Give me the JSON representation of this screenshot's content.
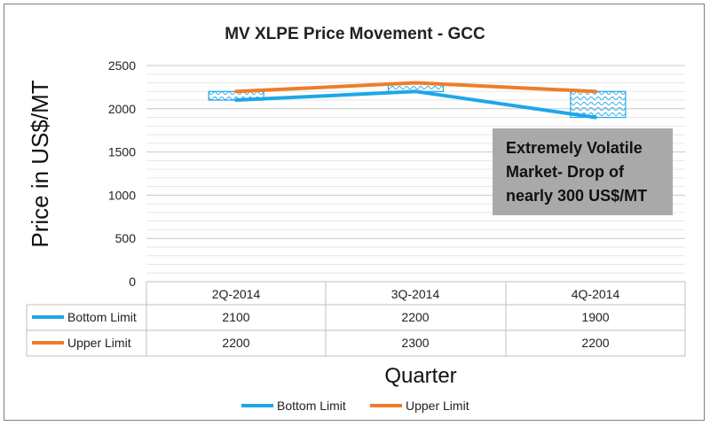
{
  "chart_data": {
    "type": "line",
    "title": "MV XLPE Price Movement - GCC",
    "xlabel": "Quarter",
    "ylabel": "Price in US$/MT",
    "categories": [
      "2Q-2014",
      "3Q-2014",
      "4Q-2014"
    ],
    "yticks": [
      "0",
      "500",
      "1000",
      "1500",
      "2000",
      "2500"
    ],
    "ylim": [
      0,
      2500
    ],
    "grid": true,
    "legend": "bottom",
    "series": [
      {
        "name": "Bottom Limit",
        "values": [
          2100,
          2200,
          1900
        ],
        "color": "#1ea7e8"
      },
      {
        "name": "Upper Limit",
        "values": [
          2200,
          2300,
          2200
        ],
        "color": "#ee7d2b"
      }
    ],
    "annotation_lines": [
      "Extremely Volatile",
      "Market- Drop of",
      "nearly 300 US$/MT"
    ],
    "table_values": [
      [
        "2100",
        "2200",
        "1900"
      ],
      [
        "2200",
        "2300",
        "2200"
      ]
    ],
    "range_box_color": "#1ea7e8"
  }
}
